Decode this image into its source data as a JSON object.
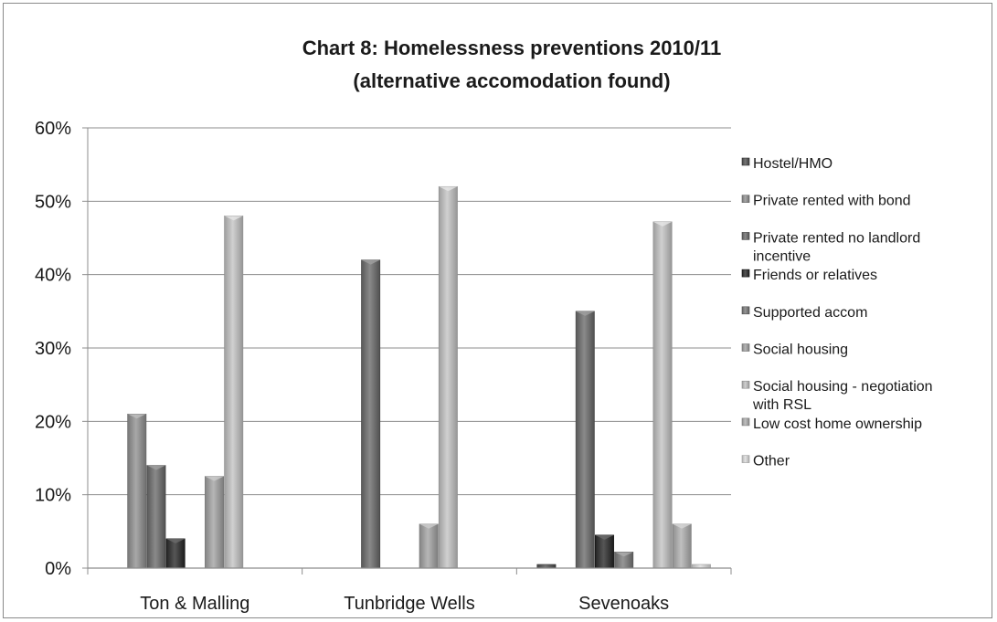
{
  "chart_data": {
    "type": "bar",
    "title": "Chart 8: Homelessness preventions 2010/11",
    "subtitle": "(alternative accomodation found)",
    "categories": [
      "Ton & Malling",
      "Tunbridge Wells",
      "Sevenoaks"
    ],
    "y_ticks": [
      "0%",
      "10%",
      "20%",
      "30%",
      "40%",
      "50%",
      "60%"
    ],
    "ylim": [
      0,
      60
    ],
    "grid": true,
    "legend_position": "right",
    "series": [
      {
        "name": "Hostel/HMO",
        "legend_lines": [
          "Hostel/HMO"
        ],
        "color": "#5a5a5a",
        "values": [
          0,
          0,
          0.5
        ]
      },
      {
        "name": "Private rented with  bond",
        "legend_lines": [
          "Private rented with  bond"
        ],
        "color": "#8c8c8c",
        "values": [
          21,
          0,
          0
        ]
      },
      {
        "name": "Private rented no landlord incentive",
        "legend_lines": [
          "Private rented no landlord",
          "incentive"
        ],
        "color": "#6e6e6e",
        "values": [
          14,
          42,
          35
        ]
      },
      {
        "name": "Friends or relatives",
        "legend_lines": [
          "Friends or relatives"
        ],
        "color": "#3a3a3a",
        "values": [
          4,
          0,
          4.5
        ]
      },
      {
        "name": "Supported accom",
        "legend_lines": [
          "Supported accom"
        ],
        "color": "#7a7a7a",
        "values": [
          0,
          0,
          2.2
        ]
      },
      {
        "name": "Social housing",
        "legend_lines": [
          "Social housing"
        ],
        "color": "#9a9a9a",
        "values": [
          12.5,
          6,
          0
        ]
      },
      {
        "name": "Social housing - negotiation with RSL",
        "legend_lines": [
          "Social housing - negotiation",
          "with RSL"
        ],
        "color": "#b4b4b4",
        "values": [
          48,
          52,
          47.2
        ]
      },
      {
        "name": "Low cost home ownership",
        "legend_lines": [
          "Low cost home ownership"
        ],
        "color": "#a4a4a4",
        "values": [
          0,
          0,
          6
        ]
      },
      {
        "name": "Other",
        "legend_lines": [
          "Other"
        ],
        "color": "#c8c8c8",
        "values": [
          0,
          0,
          0.5
        ]
      }
    ]
  }
}
